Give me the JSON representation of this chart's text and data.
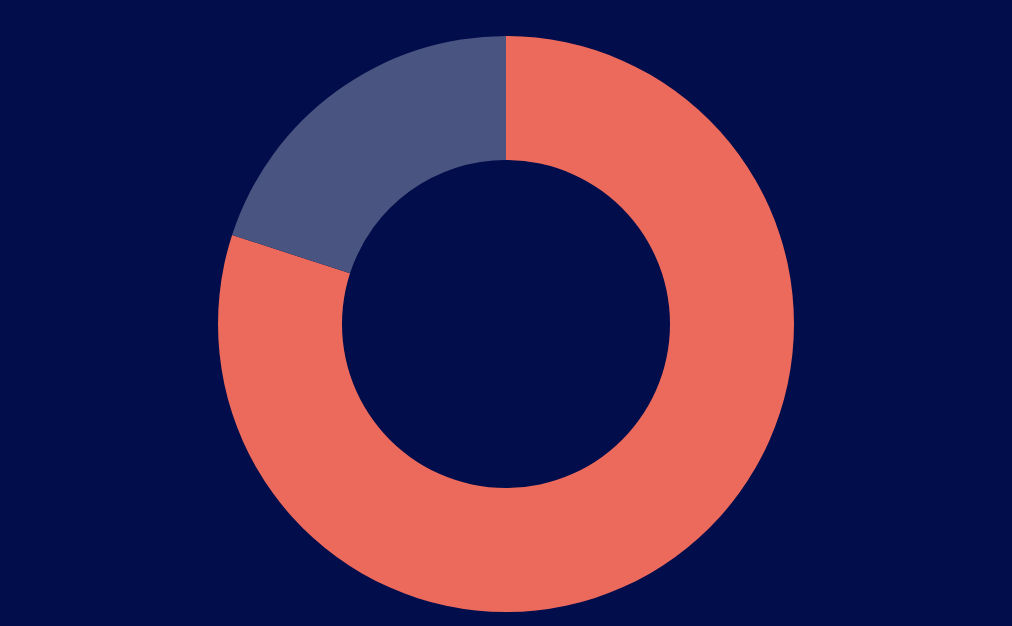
{
  "chart_data": {
    "type": "donut",
    "categories": [
      null,
      null
    ],
    "values": [
      80,
      20
    ],
    "colors": [
      "#ec6a5c",
      "#4a5480"
    ]
  }
}
